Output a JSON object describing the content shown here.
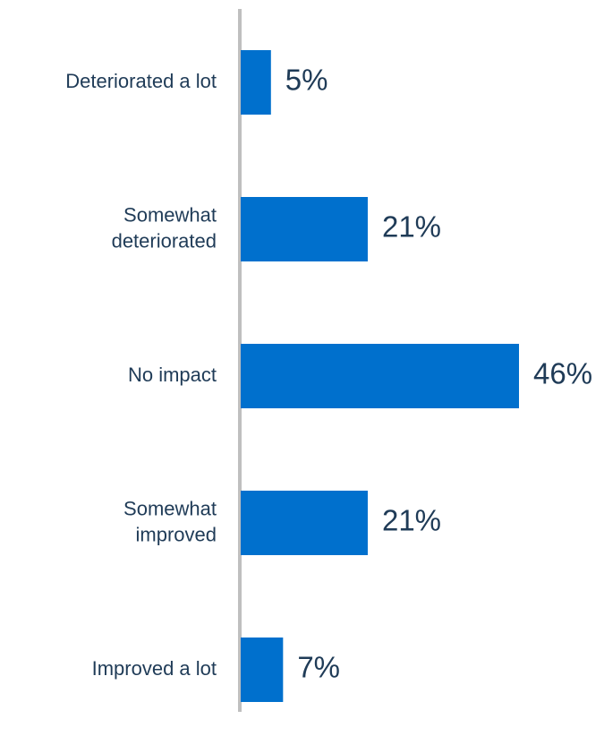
{
  "chart_data": {
    "type": "bar",
    "orientation": "horizontal",
    "categories": [
      [
        "Deteriorated a lot"
      ],
      [
        "Somewhat",
        "deteriorated"
      ],
      [
        "No impact"
      ],
      [
        "Somewhat",
        "improved"
      ],
      [
        "Improved a lot"
      ]
    ],
    "values": [
      5,
      21,
      46,
      21,
      7
    ],
    "value_labels": [
      "5%",
      "21%",
      "46%",
      "21%",
      "7%"
    ],
    "xlim": [
      0,
      50
    ],
    "grid": false,
    "legend": "none",
    "bar_color": "#0070cd",
    "axis_color": "#bfbfbf",
    "text_color": "#1f3b57"
  }
}
